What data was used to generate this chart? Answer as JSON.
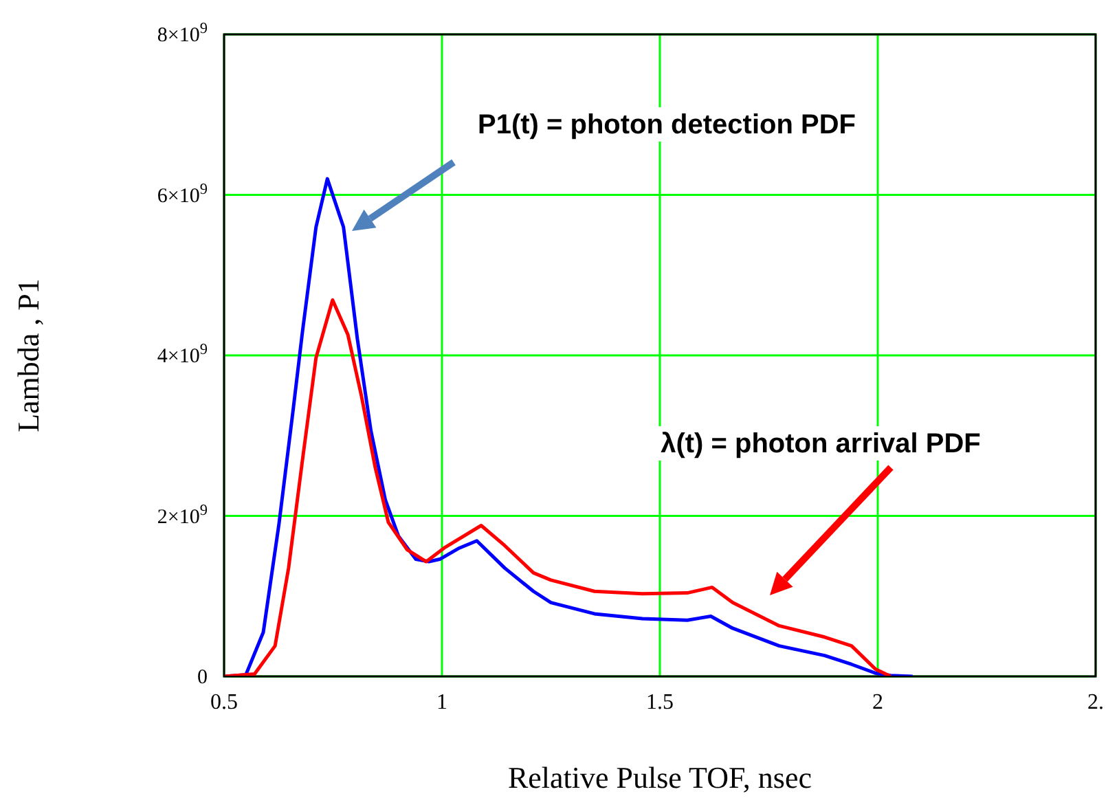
{
  "chart_data": {
    "type": "line",
    "xlabel": "Relative Pulse TOF, nsec",
    "ylabel": "Lambda , P1",
    "xlim": [
      0.5,
      2.5
    ],
    "ylim": [
      0,
      8000000000
    ],
    "xticks": [
      0.5,
      1,
      1.5,
      2,
      {
        "value": 2.5,
        "label": "2."
      }
    ],
    "yticks": [
      {
        "value": 0,
        "label": "0"
      },
      {
        "value": 2000000000,
        "label": "2×10$^{9}$"
      },
      {
        "value": 4000000000,
        "label": "4×10$^{9}$"
      },
      {
        "value": 6000000000,
        "label": "6×10$^{9}$"
      },
      {
        "value": 8000000000,
        "label": "8×10$^{9}$"
      }
    ],
    "grid": true,
    "line_style": "solid",
    "marker": "none",
    "series": [
      {
        "color": "#0000ff",
        "x": [
          0.5,
          0.55,
          0.59,
          0.626,
          0.658,
          0.68,
          0.711,
          0.737,
          0.774,
          0.806,
          0.837,
          0.87,
          0.9,
          0.94,
          0.97,
          0.995,
          1.04,
          1.08,
          1.144,
          1.21,
          1.25,
          1.35,
          1.46,
          1.563,
          1.617,
          1.667,
          1.774,
          1.878,
          1.94,
          1.995,
          2.03,
          2.08
        ],
        "values": [
          0,
          20000000,
          550000000,
          1900000000,
          3300000000,
          4300000000,
          5600000000,
          6200000000,
          5600000000,
          4200000000,
          3060000000,
          2200000000,
          1750000000,
          1460000000,
          1430000000,
          1460000000,
          1600000000,
          1690000000,
          1350000000,
          1060000000,
          920000000,
          780000000,
          720000000,
          700000000,
          750000000,
          600000000,
          380000000,
          260000000,
          150000000,
          40000000,
          10000000,
          0
        ]
      },
      {
        "color": "#ff0000",
        "x": [
          0.5,
          0.57,
          0.617,
          0.648,
          0.68,
          0.711,
          0.749,
          0.784,
          0.815,
          0.847,
          0.877,
          0.92,
          0.964,
          1.005,
          1.09,
          1.144,
          1.21,
          1.25,
          1.35,
          1.46,
          1.563,
          1.62,
          1.667,
          1.774,
          1.878,
          1.94,
          1.995,
          2.03
        ],
        "values": [
          0,
          30000000,
          380000000,
          1350000000,
          2700000000,
          3970000000,
          4690000000,
          4260000000,
          3500000000,
          2600000000,
          1920000000,
          1580000000,
          1430000000,
          1600000000,
          1880000000,
          1630000000,
          1290000000,
          1200000000,
          1060000000,
          1030000000,
          1040000000,
          1110000000,
          920000000,
          630000000,
          490000000,
          380000000,
          90000000,
          0
        ]
      }
    ],
    "annotations": [
      "P1(t) = photon detection PDF",
      "λ(t) = photon arrival PDF"
    ]
  }
}
